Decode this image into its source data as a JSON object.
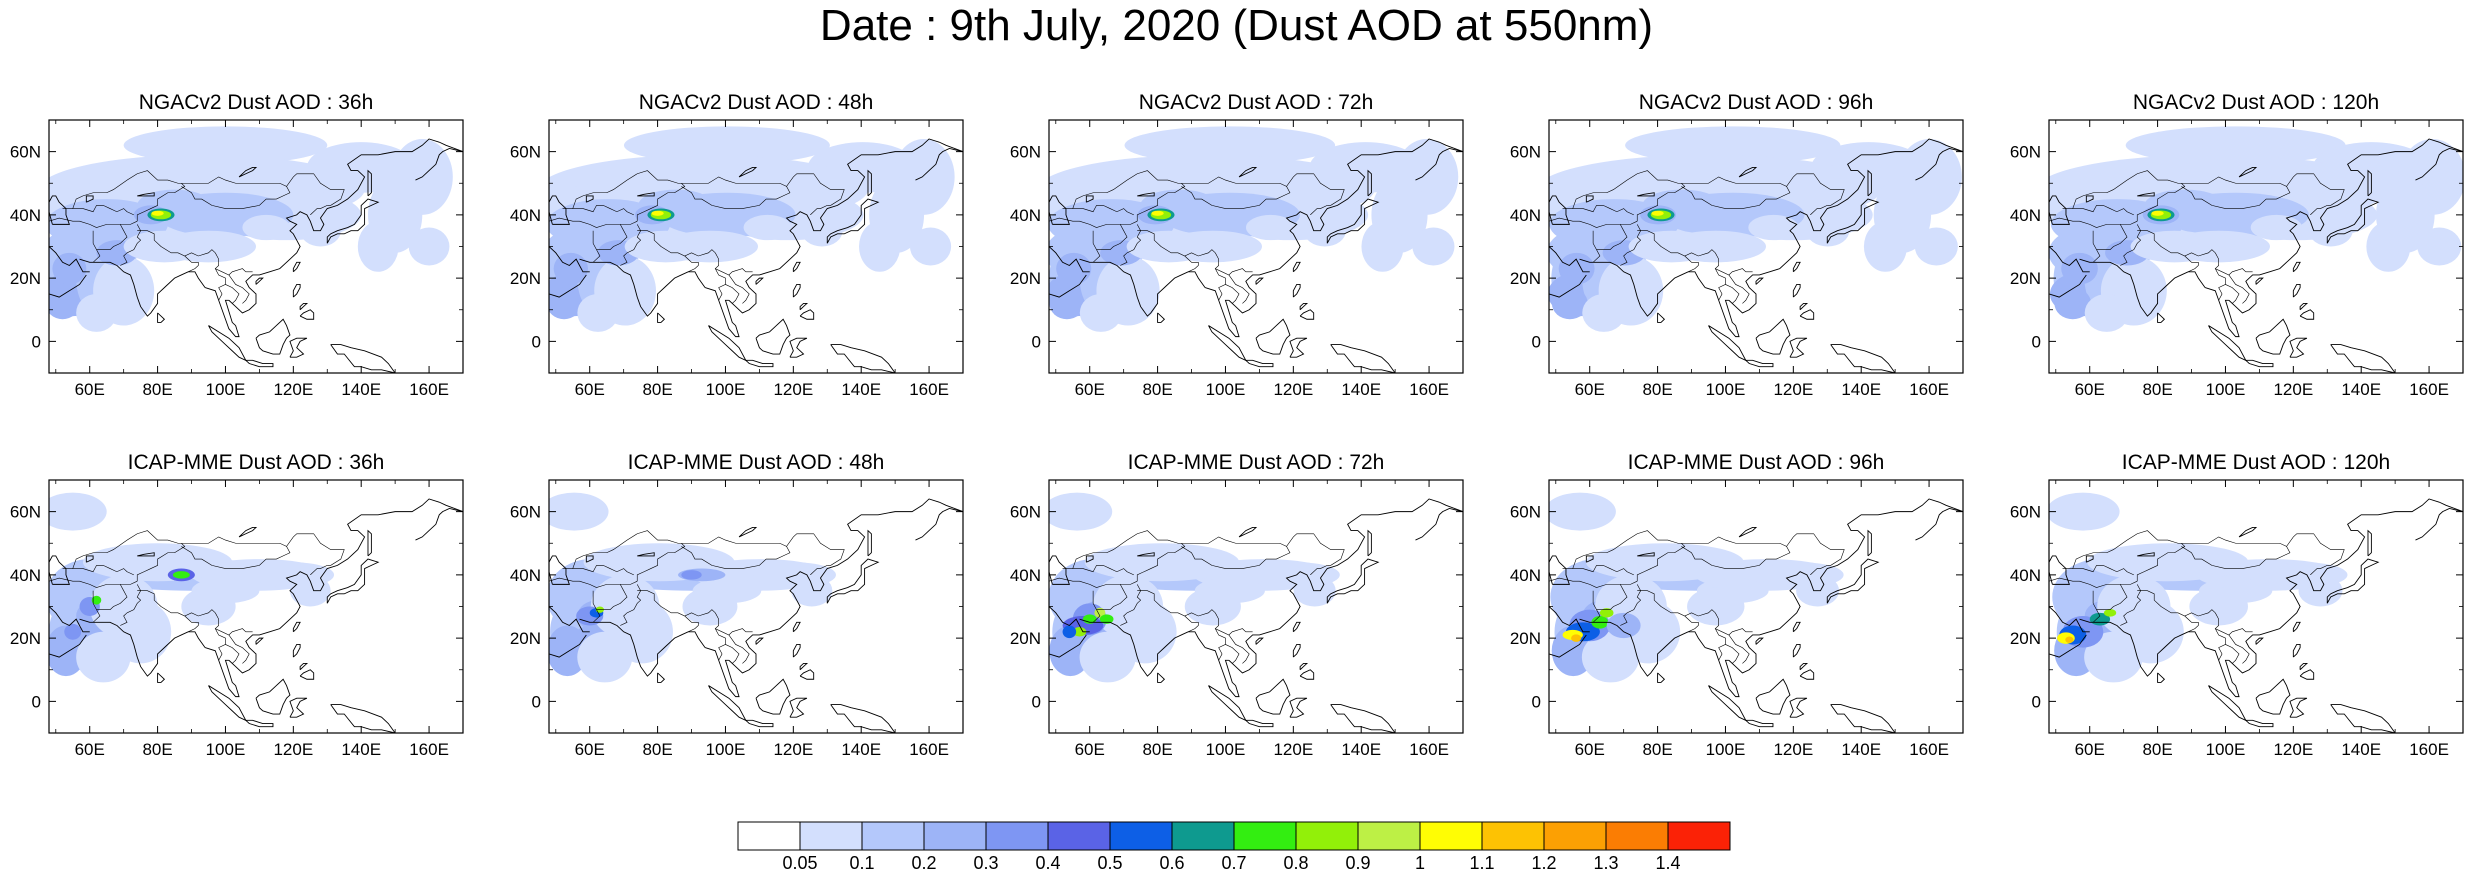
{
  "title": "Date : 9th July, 2020 (Dust AOD at 550nm)",
  "map": {
    "lon_range": [
      48,
      170
    ],
    "lat_range": [
      -10,
      70
    ],
    "lon_ticks": [
      "60E",
      "80E",
      "100E",
      "120E",
      "140E",
      "160E"
    ],
    "lat_ticks": [
      "0",
      "20N",
      "40N",
      "60N"
    ]
  },
  "panels": [
    {
      "title": "NGACv2 Dust AOD : 36h",
      "model": "ngac",
      "lead": 36
    },
    {
      "title": "NGACv2 Dust AOD : 48h",
      "model": "ngac",
      "lead": 48
    },
    {
      "title": "NGACv2 Dust AOD : 72h",
      "model": "ngac",
      "lead": 72
    },
    {
      "title": "NGACv2 Dust AOD : 96h",
      "model": "ngac",
      "lead": 96
    },
    {
      "title": "NGACv2 Dust AOD : 120h",
      "model": "ngac",
      "lead": 120
    },
    {
      "title": "ICAP-MME Dust AOD : 36h",
      "model": "icap",
      "lead": 36
    },
    {
      "title": "ICAP-MME Dust AOD : 48h",
      "model": "icap",
      "lead": 48
    },
    {
      "title": "ICAP-MME Dust AOD : 72h",
      "model": "icap",
      "lead": 72
    },
    {
      "title": "ICAP-MME Dust AOD : 96h",
      "model": "icap",
      "lead": 96
    },
    {
      "title": "ICAP-MME Dust AOD : 120h",
      "model": "icap",
      "lead": 120
    }
  ],
  "colorbar": {
    "labels": [
      "0.05",
      "0.1",
      "0.2",
      "0.3",
      "0.4",
      "0.5",
      "0.6",
      "0.7",
      "0.8",
      "0.9",
      "1",
      "1.1",
      "1.2",
      "1.3",
      "1.4"
    ],
    "colors": [
      "#ffffff",
      "#d3dffd",
      "#b4c8fb",
      "#9db4f7",
      "#7e96f3",
      "#5a63e6",
      "#0d5fe6",
      "#0e9a8f",
      "#33ee11",
      "#92f009",
      "#bdf045",
      "#fffd04",
      "#fdc203",
      "#fca003",
      "#fb7d03",
      "#fb2206"
    ]
  }
}
